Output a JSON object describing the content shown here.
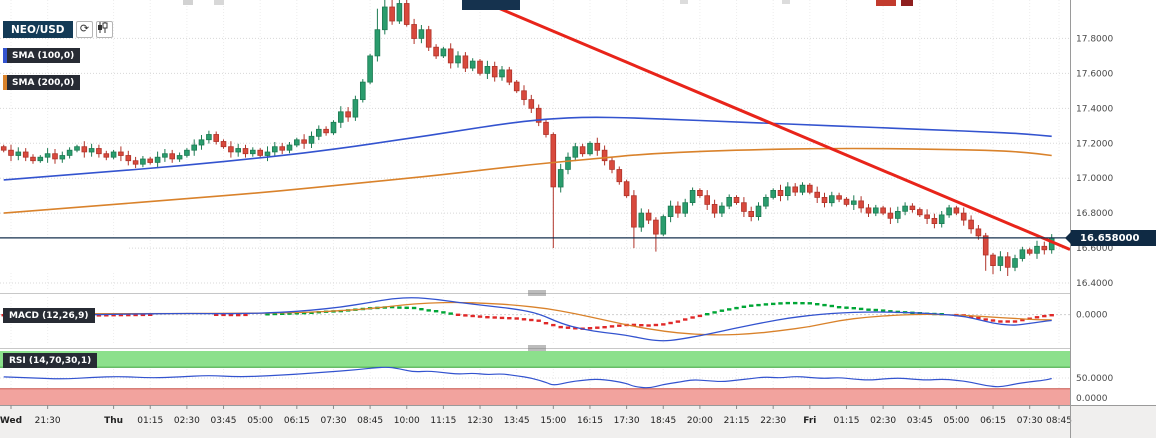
{
  "ui": {
    "symbol": "NEO/USD",
    "refresh_icon": "⟳",
    "legend_sma100": "SMA (100,0)",
    "legend_sma200": "SMA (200,0)",
    "macd_label": "MACD (12,26,9)",
    "rsi_label": "RSI (14,70,30,1)",
    "current_price_label": "16.658000"
  },
  "colors": {
    "up_candle": "#2a9c6d",
    "up_border": "#1d7a52",
    "down_candle": "#d8493d",
    "down_border": "#b03329",
    "sma100": "#3353cf",
    "sma200": "#d9822b",
    "trendline": "#e8241a",
    "price_line": "#16304f",
    "price_badge_bg": "#0f2a44",
    "macd_line": "#3353cf",
    "macd_signal": "#d9822b",
    "hist_pos": "#00a636",
    "hist_neg": "#e02828",
    "rsi_line": "#3353cf",
    "rsi_upper_band": "#8ce08c",
    "rsi_lower_band": "#f2a39e",
    "band_upper_border": "#37a437",
    "band_lower_border": "#c9574e",
    "grid": "#d8d8d8",
    "vgrid": "#ededed",
    "axis_text": "#4a4a4a",
    "time_text": "#222222",
    "splitter": "#c8c8c8",
    "grip": "#7a7a7a",
    "axis_border": "#9a9a9a",
    "axis_strip_bg": "#f0efee"
  },
  "chart_data": {
    "type": "candlestick",
    "symbol": "NEO/USD",
    "slots": 146,
    "ylim": [
      16.36,
      18.02
    ],
    "current_price": 16.658,
    "price_ticks": [
      {
        "v": 17.8,
        "label": "17.8000"
      },
      {
        "v": 17.6,
        "label": "17.6000"
      },
      {
        "v": 17.4,
        "label": "17.4000"
      },
      {
        "v": 17.2,
        "label": "17.2000"
      },
      {
        "v": 17.0,
        "label": "17.0000"
      },
      {
        "v": 16.8,
        "label": "16.8000"
      },
      {
        "v": 16.6,
        "label": "16.6000"
      },
      {
        "v": 16.4,
        "label": "16.4000"
      }
    ],
    "closes": [
      17.16,
      17.13,
      17.15,
      17.12,
      17.1,
      17.12,
      17.14,
      17.11,
      17.13,
      17.16,
      17.18,
      17.15,
      17.17,
      17.14,
      17.12,
      17.15,
      17.13,
      17.1,
      17.08,
      17.11,
      17.09,
      17.12,
      17.14,
      17.11,
      17.13,
      17.16,
      17.19,
      17.22,
      17.25,
      17.21,
      17.18,
      17.15,
      17.17,
      17.14,
      17.16,
      17.13,
      17.15,
      17.18,
      17.16,
      17.19,
      17.22,
      17.2,
      17.24,
      17.28,
      17.26,
      17.32,
      17.38,
      17.35,
      17.45,
      17.55,
      17.7,
      17.85,
      17.98,
      17.9,
      18.0,
      17.88,
      17.8,
      17.85,
      17.75,
      17.7,
      17.74,
      17.66,
      17.7,
      17.63,
      17.67,
      17.6,
      17.64,
      17.58,
      17.62,
      17.55,
      17.5,
      17.45,
      17.4,
      17.32,
      17.25,
      16.95,
      17.05,
      17.12,
      17.18,
      17.14,
      17.2,
      17.16,
      17.1,
      17.05,
      16.98,
      16.9,
      16.72,
      16.8,
      16.76,
      16.68,
      16.78,
      16.84,
      16.8,
      16.86,
      16.93,
      16.9,
      16.85,
      16.8,
      16.84,
      16.89,
      16.86,
      16.81,
      16.78,
      16.84,
      16.89,
      16.93,
      16.9,
      16.95,
      16.92,
      16.96,
      16.92,
      16.89,
      16.86,
      16.9,
      16.88,
      16.85,
      16.87,
      16.83,
      16.8,
      16.83,
      16.8,
      16.77,
      16.81,
      16.84,
      16.82,
      16.79,
      16.77,
      16.74,
      16.79,
      16.83,
      16.8,
      16.76,
      16.71,
      16.67,
      16.56,
      16.5,
      16.55,
      16.49,
      16.54,
      16.59,
      16.57,
      16.61,
      16.59,
      16.658
    ],
    "wick_low_overrides": {
      "75": 16.6,
      "86": 16.6,
      "89": 16.58,
      "134": 16.47,
      "135": 16.45,
      "137": 16.44
    },
    "wick_high_overrides": {
      "51": 17.97,
      "52": 18.06,
      "53": 18.04,
      "54": 18.06,
      "55": 18.02
    },
    "sma100": {
      "label": "SMA (100,0)",
      "points": [
        [
          0,
          16.99
        ],
        [
          12,
          17.03
        ],
        [
          24,
          17.07
        ],
        [
          36,
          17.12
        ],
        [
          46,
          17.17
        ],
        [
          54,
          17.22
        ],
        [
          62,
          17.27
        ],
        [
          68,
          17.31
        ],
        [
          74,
          17.34
        ],
        [
          80,
          17.35
        ],
        [
          86,
          17.345
        ],
        [
          92,
          17.335
        ],
        [
          98,
          17.325
        ],
        [
          104,
          17.315
        ],
        [
          110,
          17.305
        ],
        [
          116,
          17.295
        ],
        [
          122,
          17.285
        ],
        [
          128,
          17.275
        ],
        [
          134,
          17.265
        ],
        [
          139,
          17.255
        ],
        [
          143,
          17.24
        ]
      ]
    },
    "sma200": {
      "label": "SMA (200,0)",
      "points": [
        [
          0,
          16.8
        ],
        [
          12,
          16.84
        ],
        [
          24,
          16.88
        ],
        [
          36,
          16.92
        ],
        [
          48,
          16.97
        ],
        [
          60,
          17.02
        ],
        [
          70,
          17.07
        ],
        [
          80,
          17.11
        ],
        [
          88,
          17.14
        ],
        [
          96,
          17.155
        ],
        [
          104,
          17.165
        ],
        [
          112,
          17.17
        ],
        [
          120,
          17.17
        ],
        [
          128,
          17.165
        ],
        [
          134,
          17.16
        ],
        [
          139,
          17.15
        ],
        [
          143,
          17.13
        ]
      ]
    },
    "trendline": {
      "from": [
        40,
        18.47
      ],
      "to": [
        146,
        16.592
      ]
    },
    "time_labels": [
      {
        "t": "Wed",
        "i": 1,
        "d": 1
      },
      {
        "t": "21:30",
        "i": 6
      },
      {
        "t": "Thu",
        "i": 15,
        "d": 1
      },
      {
        "t": "01:15",
        "i": 20
      },
      {
        "t": "02:30",
        "i": 25
      },
      {
        "t": "03:45",
        "i": 30
      },
      {
        "t": "05:00",
        "i": 35
      },
      {
        "t": "06:15",
        "i": 40
      },
      {
        "t": "07:30",
        "i": 45
      },
      {
        "t": "08:45",
        "i": 50
      },
      {
        "t": "10:00",
        "i": 55
      },
      {
        "t": "11:15",
        "i": 60
      },
      {
        "t": "12:30",
        "i": 65
      },
      {
        "t": "13:45",
        "i": 70
      },
      {
        "t": "15:00",
        "i": 75
      },
      {
        "t": "16:15",
        "i": 80
      },
      {
        "t": "17:30",
        "i": 85
      },
      {
        "t": "18:45",
        "i": 90
      },
      {
        "t": "20:00",
        "i": 95
      },
      {
        "t": "21:15",
        "i": 100
      },
      {
        "t": "22:30",
        "i": 105
      },
      {
        "t": "Fri",
        "i": 110,
        "d": 1
      },
      {
        "t": "01:15",
        "i": 115
      },
      {
        "t": "02:30",
        "i": 120
      },
      {
        "t": "03:45",
        "i": 125
      },
      {
        "t": "05:00",
        "i": 130
      },
      {
        "t": "06:15",
        "i": 135
      },
      {
        "t": "07:30",
        "i": 140
      },
      {
        "t": "08:45",
        "i": 144
      }
    ],
    "macd": {
      "label": "MACD (12,26,9)",
      "ylim": [
        -0.155,
        0.095
      ],
      "axis_label": "0.0000",
      "line": [
        [
          0,
          0.0
        ],
        [
          8,
          -0.003
        ],
        [
          16,
          0.002
        ],
        [
          24,
          0.006
        ],
        [
          32,
          0.004
        ],
        [
          38,
          0.012
        ],
        [
          42,
          0.022
        ],
        [
          46,
          0.038
        ],
        [
          50,
          0.062
        ],
        [
          53,
          0.082
        ],
        [
          56,
          0.088
        ],
        [
          59,
          0.078
        ],
        [
          62,
          0.062
        ],
        [
          66,
          0.045
        ],
        [
          70,
          0.028
        ],
        [
          73,
          0.005
        ],
        [
          76,
          -0.045
        ],
        [
          79,
          -0.075
        ],
        [
          82,
          -0.092
        ],
        [
          85,
          -0.105
        ],
        [
          88,
          -0.128
        ],
        [
          90,
          -0.135
        ],
        [
          92,
          -0.128
        ],
        [
          95,
          -0.108
        ],
        [
          98,
          -0.085
        ],
        [
          101,
          -0.06
        ],
        [
          104,
          -0.038
        ],
        [
          107,
          -0.018
        ],
        [
          110,
          -0.004
        ],
        [
          113,
          0.006
        ],
        [
          116,
          0.012
        ],
        [
          119,
          0.014
        ],
        [
          122,
          0.012
        ],
        [
          125,
          0.008
        ],
        [
          128,
          0.002
        ],
        [
          131,
          -0.008
        ],
        [
          134,
          -0.035
        ],
        [
          136,
          -0.05
        ],
        [
          138,
          -0.055
        ],
        [
          140,
          -0.045
        ],
        [
          142,
          -0.034
        ],
        [
          143,
          -0.03
        ]
      ],
      "signal": [
        [
          0,
          0.003
        ],
        [
          10,
          0.004
        ],
        [
          20,
          0.005
        ],
        [
          30,
          0.006
        ],
        [
          38,
          0.008
        ],
        [
          44,
          0.015
        ],
        [
          50,
          0.03
        ],
        [
          54,
          0.048
        ],
        [
          58,
          0.06
        ],
        [
          62,
          0.063
        ],
        [
          66,
          0.058
        ],
        [
          70,
          0.048
        ],
        [
          74,
          0.032
        ],
        [
          78,
          0.005
        ],
        [
          82,
          -0.028
        ],
        [
          86,
          -0.06
        ],
        [
          90,
          -0.085
        ],
        [
          94,
          -0.1
        ],
        [
          98,
          -0.105
        ],
        [
          102,
          -0.098
        ],
        [
          106,
          -0.082
        ],
        [
          110,
          -0.062
        ],
        [
          114,
          -0.03
        ],
        [
          118,
          -0.012
        ],
        [
          122,
          -0.002
        ],
        [
          126,
          0.002
        ],
        [
          130,
          -0.002
        ],
        [
          134,
          -0.01
        ],
        [
          138,
          -0.02
        ],
        [
          141,
          -0.026
        ],
        [
          143,
          -0.027
        ]
      ]
    },
    "rsi": {
      "label": "RSI (14,70,30,1)",
      "ylim": [
        0,
        100
      ],
      "overbought": 70,
      "oversold": 30,
      "axis_labels": [
        {
          "v": 50,
          "label": "50.0000"
        },
        {
          "v": 0,
          "label": "0.0000"
        }
      ],
      "points": [
        [
          0,
          52
        ],
        [
          4,
          50
        ],
        [
          8,
          48
        ],
        [
          12,
          51
        ],
        [
          16,
          53
        ],
        [
          20,
          50
        ],
        [
          24,
          52
        ],
        [
          28,
          55
        ],
        [
          32,
          52
        ],
        [
          36,
          54
        ],
        [
          40,
          57
        ],
        [
          44,
          61
        ],
        [
          48,
          65
        ],
        [
          52,
          71
        ],
        [
          54,
          67
        ],
        [
          56,
          61
        ],
        [
          58,
          63
        ],
        [
          60,
          60
        ],
        [
          62,
          57
        ],
        [
          64,
          59
        ],
        [
          66,
          56
        ],
        [
          68,
          58
        ],
        [
          70,
          54
        ],
        [
          72,
          50
        ],
        [
          74,
          42
        ],
        [
          75,
          36
        ],
        [
          77,
          42
        ],
        [
          79,
          46
        ],
        [
          81,
          48
        ],
        [
          83,
          45
        ],
        [
          85,
          40
        ],
        [
          86,
          34
        ],
        [
          88,
          31
        ],
        [
          90,
          38
        ],
        [
          92,
          42
        ],
        [
          94,
          47
        ],
        [
          96,
          45
        ],
        [
          98,
          43
        ],
        [
          100,
          46
        ],
        [
          102,
          49
        ],
        [
          104,
          52
        ],
        [
          106,
          50
        ],
        [
          108,
          53
        ],
        [
          110,
          51
        ],
        [
          112,
          49
        ],
        [
          114,
          51
        ],
        [
          116,
          48
        ],
        [
          118,
          46
        ],
        [
          120,
          48
        ],
        [
          122,
          50
        ],
        [
          124,
          48
        ],
        [
          126,
          46
        ],
        [
          128,
          48
        ],
        [
          130,
          46
        ],
        [
          132,
          42
        ],
        [
          134,
          36
        ],
        [
          136,
          33
        ],
        [
          138,
          39
        ],
        [
          140,
          43
        ],
        [
          142,
          46
        ],
        [
          143,
          49
        ]
      ]
    }
  }
}
